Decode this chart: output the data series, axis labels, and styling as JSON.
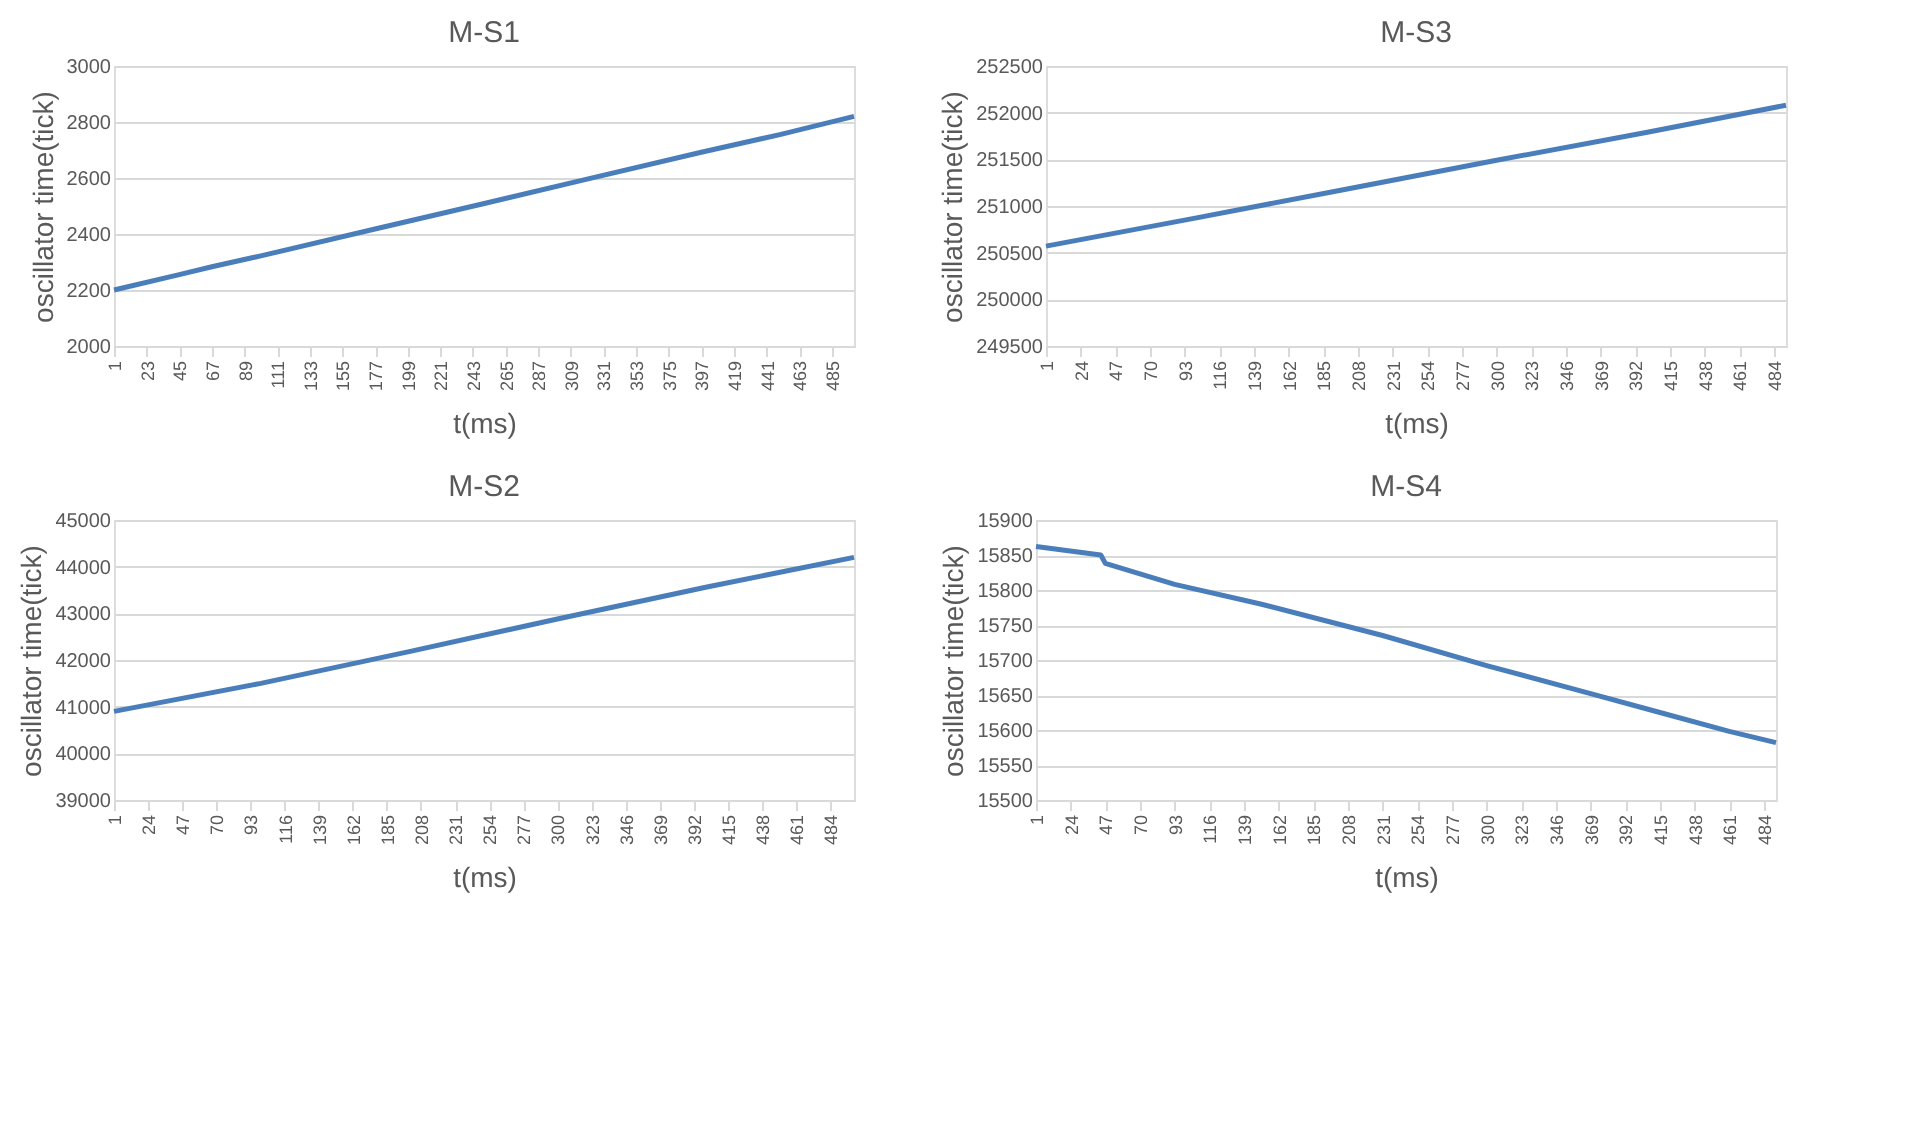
{
  "chart_data": [
    {
      "type": "line",
      "title": "M-S1",
      "xlabel": "t(ms)",
      "ylabel": "oscillator time(tick)",
      "grid": "y",
      "marker": "none",
      "line_style": "solid",
      "xlim": [
        1,
        500
      ],
      "xticks": [
        1,
        23,
        45,
        67,
        89,
        111,
        133,
        155,
        177,
        199,
        221,
        243,
        265,
        287,
        309,
        331,
        353,
        375,
        397,
        419,
        441,
        463,
        485
      ],
      "ylim": [
        2000,
        3000
      ],
      "yticks": [
        2000,
        2200,
        2400,
        2600,
        2800,
        3000
      ],
      "series": [
        {
          "color": "#4a7ebb",
          "x": [
            1,
            45,
            67,
            100,
            177,
            250,
            320,
            397,
            450,
            500
          ],
          "values": [
            2200,
            2255,
            2283,
            2322,
            2418,
            2508,
            2596,
            2692,
            2755,
            2820
          ]
        }
      ]
    },
    {
      "type": "line",
      "title": "M-S3",
      "xlabel": "t(ms)",
      "ylabel": "oscillator time(tick)",
      "grid": "y",
      "marker": "none",
      "line_style": "solid",
      "xlim": [
        1,
        492
      ],
      "xticks": [
        1,
        24,
        47,
        70,
        93,
        116,
        139,
        162,
        185,
        208,
        231,
        254,
        277,
        300,
        323,
        346,
        369,
        392,
        415,
        438,
        461,
        484
      ],
      "ylim": [
        249500,
        252500
      ],
      "yticks": [
        249500,
        250000,
        250500,
        251000,
        251500,
        252000,
        252500
      ],
      "series": [
        {
          "color": "#4a7ebb",
          "x": [
            1,
            100,
            200,
            300,
            400,
            492
          ],
          "values": [
            250570,
            250870,
            251180,
            251490,
            251790,
            252080
          ]
        }
      ]
    },
    {
      "type": "line",
      "title": "M-S2",
      "xlabel": "t(ms)",
      "ylabel": "oscillator time(tick)",
      "grid": "y",
      "marker": "none",
      "line_style": "solid",
      "xlim": [
        1,
        500
      ],
      "xticks": [
        1,
        24,
        47,
        70,
        93,
        116,
        139,
        162,
        185,
        208,
        231,
        254,
        277,
        300,
        323,
        346,
        369,
        392,
        415,
        438,
        461,
        484
      ],
      "ylim": [
        39000,
        45000
      ],
      "yticks": [
        39000,
        40000,
        41000,
        42000,
        43000,
        44000,
        45000
      ],
      "series": [
        {
          "color": "#4a7ebb",
          "x": [
            1,
            100,
            200,
            300,
            400,
            500
          ],
          "values": [
            40900,
            41500,
            42180,
            42880,
            43560,
            44200
          ]
        }
      ]
    },
    {
      "type": "line",
      "title": "M-S4",
      "xlabel": "t(ms)",
      "ylabel": "oscillator time(tick)",
      "grid": "y",
      "marker": "none",
      "line_style": "solid",
      "xlim": [
        1,
        492
      ],
      "xticks": [
        1,
        24,
        47,
        70,
        93,
        116,
        139,
        162,
        185,
        208,
        231,
        254,
        277,
        300,
        323,
        346,
        369,
        392,
        415,
        438,
        461,
        484
      ],
      "ylim": [
        15500,
        15900
      ],
      "yticks": [
        15500,
        15550,
        15600,
        15650,
        15700,
        15750,
        15800,
        15850,
        15900
      ],
      "series": [
        {
          "color": "#4a7ebb",
          "x": [
            1,
            44,
            47,
            93,
            150,
            231,
            300,
            369,
            415,
            461,
            492
          ],
          "values": [
            15862,
            15850,
            15838,
            15808,
            15780,
            15735,
            15692,
            15652,
            15625,
            15598,
            15582
          ]
        }
      ]
    }
  ]
}
